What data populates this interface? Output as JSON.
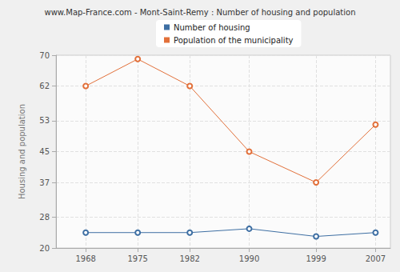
{
  "chart_data": {
    "type": "line",
    "title": "www.Map-France.com - Mont-Saint-Remy : Number of housing and population",
    "ylabel": "Housing and population",
    "x": [
      1968,
      1975,
      1982,
      1990,
      1999,
      2007
    ],
    "series": [
      {
        "name": "Number of housing",
        "color": "#3e6fa3",
        "marker": "circle",
        "values": [
          24,
          24,
          24,
          25,
          23,
          24
        ]
      },
      {
        "name": "Population of the municipality",
        "color": "#e2703a",
        "marker": "circle",
        "values": [
          62,
          69,
          62,
          45,
          37,
          52
        ]
      }
    ],
    "xlim": [
      1964,
      2009
    ],
    "xticks": [
      1968,
      1975,
      1982,
      1990,
      1999,
      2007
    ],
    "ylim": [
      20,
      70
    ],
    "yticks": [
      20,
      28,
      37,
      45,
      53,
      62,
      70
    ],
    "grid": true,
    "legend": "top"
  }
}
